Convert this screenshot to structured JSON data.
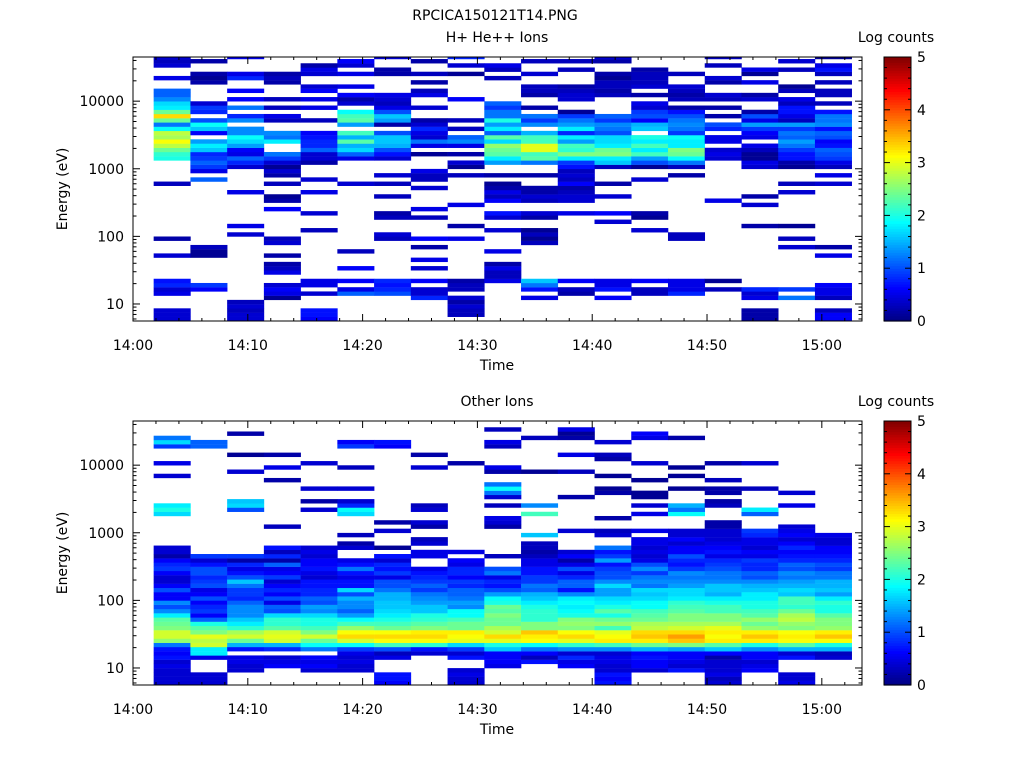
{
  "figure": {
    "title": "RPCICA150121T14.PNG"
  },
  "colors": {
    "background": "#ffffff",
    "axes": "#000000",
    "colormap": "jet"
  },
  "chart_data": [
    {
      "type": "heatmap",
      "title": "H+ He++ Ions",
      "xlabel": "Time",
      "ylabel": "Energy (eV)",
      "yscale": "log",
      "ylim": [
        5.6,
        45000
      ],
      "x_tick_labels": [
        "14:00",
        "14:10",
        "14:20",
        "14:30",
        "14:40",
        "14:50",
        "15:00"
      ],
      "x_tick_minutes": [
        0,
        10,
        20,
        30,
        40,
        50,
        60
      ],
      "xlim_minutes": [
        0,
        63.5
      ],
      "y_tick_labels": [
        "10",
        "100",
        "1000",
        "10000"
      ],
      "y_tick_values": [
        10,
        100,
        1000,
        10000
      ],
      "colorbar": {
        "label": "Log counts",
        "tick_labels": [
          "0",
          "1",
          "2",
          "3",
          "4",
          "5"
        ],
        "range": [
          0,
          5
        ]
      },
      "time_columns_start_minutes": [
        1.8,
        5.0,
        8.2,
        11.4,
        14.6,
        17.8,
        21.0,
        24.2,
        27.4,
        30.6,
        33.8,
        37.0,
        40.2,
        43.4,
        46.6,
        49.8,
        53.0,
        56.2,
        59.4
      ],
      "time_column_width_minutes": 3.2,
      "energy_rows": "log-spaced, 16 rows per decade, within ylim",
      "cells_encoding": "19 time columns separated by '|'; each is a string of space-separated log-count values (0-5), one per energy row from lowest to highest energy; '-' means empty",
      "cells": "0.4 0.4 0.4 - - - 0.5 0.4 0.8 0.7 - - - - - 0.4 - - - 0.2 - - - - - - - - - - - - 0.3 - - - - - 2.0 2.1 2.4 2.8 3.1 2.7 2.8 1.9 1.2 2.4 3.3 2.4 1.8 1.7 1.3 1.1 1.1 - - 0.5 - - 0.4 0.3 0.4 0.2 0.5 0.2 0.5 - 0.2 - 0.4 0.3 - 0.2 - - - - - - - - -|- - - - - - - 0.6 0.9 - - - - - - 0.1 0.1 0.3 - - - - - - - - - - - - - - - 1.1 - 0.5 0.9 1.1 0.9 0.8 1.6 1.8 1.4 - 0.6 1.6 1.9 1.0 - 0.8 0.9 0.4 - - - - 0.2 0.1 0.2 - - 0.2 - - - - - - - - - 0.2 0.2|0.4 0.4 0.3 0.4 0.3 - - - - - - - - - - - - - - - 0.4 - 0.5 - - - - - - - 0.5 - - - - - 0.4 0.8 1.1 0.5 0.6 1.4 1.7 1.9 1.3 1.3 - 1.3 0.8 - 1.2 - 0.6 - 0.6 - - 0.8 0.5 - - - 0.5 - - - - - - - 0.4 - 0.4 - 0.7|- - - - - 0.1 0.5 0.6 0.4 - - 0.5 0.3 0.2 - 0.2 - - 0.4 0.3 - - - - - - 0.6 - 0.2 0.1 - - 0.3 - 0.2 0.4 0.1 0.4 0.9 1.2 - - 1.8 1.2 1.3 - - 0.3 0.5 - 0.3 - 0.3 - - - 0.2 0.3 0.2 - - - - - - 0.2 - 0.3 0.5 0.4 - - 0.5|0.6 0.7 0.7 - - - 0.4 - 0.5 0.5 - - - - - - - - - - - 0.3 - - - 0.4 - - - - 0.5 - - 0.4 - - - 0.2 0.4 0.4 1.1 0.8 0.8 0.7 0.6 - - 0.3 - - 0.5 - 0.5 - 0.6 0.4 - - 0.4 0.5 0.2 - - - 0.3 - - 0.1 - 0.4 - 0.3 - - 0.3|- - - - - - 1.1 0.5 - 0.6 - - 0.6 - - - 0.3 - - - - - - - - - - - - - - - 0.4 - - - - - 0.5 1.1 1.7 1.5 2.3 1.5 2.2 - 1.4 2.3 2.2 1.9 - 0.4 0.2 0.6 - 0.5 - - 0.5 - 0.4 0.6 - 0.2 0.4 - - 0.1 0.4 0.3 0.7 - 0.8|- - - - - - 1.0 0.8 0.7 0.8 - - - - - - - - - 0.3 0.4 - - - 0.3 0.2 - - - 0.3 - - 0.3 - 0.4 - - - 0.4 0.7 1.0 1.5 1.6 1.6 1.0 - 0.2 1.4 1.6 1.0 0.5 0.3 0.4 0.5 - - - - 0.2 0.2 - - 0.4 - 0.5 0.3 - 0.5 0.2 - - - -|- - - - - 0.8 0.4 0.4 - 0.6 - - 0.4 - 0.5 - - 0.2 - 0.6 - - - - 0.3 - 0.5 - - - - 0.4 - 0.3 0.3 0.5 - - - 0.1 - 0.5 1.2 0.4 0.5 0.8 0.4 0.2 - - 0.4 - - 0.5 0.3 - 0.2 - 0.3 - - 0.2 - - - 0.1 - - 0.4 - 0.4 - - 0.3 -|- 0.3 0.3 0.4 0.2 0.4 - 0.3 0.3 0.2 - - - - - - - - - 0.5 - - 0.2 - - - - 0.5 - - - - - - 0.3 - 0.1 0.4 - 0.2 - 0.5 1.3 1.1 - 0.3 - 0.3 - - - - 0.6 - - - - - 0.1 - 0.4 - 0.8 - - - 0.3 - 0.4 - 0.3 0.3 -|- - - - - - - - - 0.5 0.3 0.3 0.5 0.2 - - 0.5 - - - - 0.4 - - 0.4 0.7 - - 0.6 0.3 0.5 0.2 0.1 - 0.2 - - 1.4 1.8 2.3 2.4 2.6 1.7 2.3 1.1 1.8 1.4 2.0 1.2 1.2 0.9 1.1 - - - - - 0.3 - 0.3 0.5 - - - - 0.4 0.5 0.2 0.7 0.6 0.5 - -|- - - - - 0.5 - 0.7 1.2 1.6 - - - - - - - - 0.3 0.1 0.3 0.1 - - 0.2 0.4 - - 0.3 0.4 0.2 0.2 - - 0.2 - - 1.2 2.3 2.2 3.0 3.0 2.2 2.2 1.5 - 1.3 0.9 1.2 - 0.2 - - 0.2 0.3 0.3 - - 0.4 - - 0.3 - - 0.4 - 0.2 0.3 0.4 0.8 0.9 0.1 0.3|- - - - - - 0.2 0.3 - 0.6 - - - - - - - - - - - - - - - 0.5 - - 0.4 0.4 0.3 0.2 0.6 0.3 0.4 0.3 0.7 0.9 1.8 2.5 2.1 2.2 1.4 1.8 0.8 1.8 1.4 1.2 0.9 0.1 - - 0.4 0.4 0.3 0.2 - - - 0.3 - 0.3 - 0.4 - 0.5 - 0.2 0.4 0.6 0.4 0.3 -|- - - - - 0.6 - 0.7 0.5 0.5 - - - - - - - - - - - - - 0.4 - 0.6 - - - 0.4 - - 0.2 - - - 0.3 1.6 1.8 2.5 2.4 1.8 1.7 1.7 1.0 1.2 1.3 0.9 1.1 - - - - 0.3 0.2 0.3 0.3 0.1 0.2 - - 0.2 0.4 0.2 - 0.3 0.4 - 0.5 - 0.1 0.6 -|- - - - - - 0.3 0.3 - 0.6 - - - - - - - - - - - 0.4 - - 0.1 0.2 - - - - - - - 0.4 - - 0.1 1.0 1.4 2.2 1.8 2.2 1.8 2.0 - 1.6 1.5 0.6 1.0 0.9 0.4 0.5 - 0.2 - 0.4 0.3 0.3 0.3 0.2 - - - - - 0.4 - - - - - - -|- - - - - - 0.8 0.5 0.5 0.5 - - - - - - - - - 0.3 0.3 - - - - - - - - - - - - - 0.2 - 0.3 1.2 1.9 2.4 2.5 1.8 1.8 1.9 0.9 1.2 1.3 1.2 1.0 0.7 0.2 - 0.3 0.2 0.3 0.4 - - 0.3 - - - - 0.4 - 0.4 0.3 0.4 0.5 - - - -|- - - - - - - 0.3 - 0.1 - - - - - - - - - - - - - - - - - - 0.5 - - - - - - - - - 0.4 0.5 0.4 - 0.5 0.5 - 0.8 1.0 - 0.2 - 0.2 - 0.3 0.4 - - 0.2 0.4 - - 0.3 - 0.3 0.5 - - - 0.4 0.3 0.4 0.6 - 0.5 0.6 -|0.2 0.2 0.2 - - 0.5 0.4 0.8 - - - - - - - - - - - - - - 0.2 - - - - 0.4 - 0.2 - - - - - - 0.4 0.5 0.1 0.1 0.3 0.5 - 0.5 0.6 0.9 1.4 0.5 1.0 0.2 - - 0.4 0.2 - - 0.5 - 0.1 0.5 - - - - 0.4 - - 0.5 - 0.2 0.7 0.2 0.5|- - - - - 1.2 - 0.9 - - - - - - - - - 0.4 - 0.3 - - 0.1 - - - - - - - 0.4 - 0.3 - - - 0.1 0.2 0.7 0.7 0.9 1.2 1.4 1.1 1.2 0.9 1.4 0.3 0.5 0.7 0.7 0.3 0.5 - 0.3 0.1 - - - 0.3 - 0.4 - 0.6 - 0.1 0.2 - 0.3 - 0.2 - 0.3|0.6 0.6 0.3 - - 0.3 0.5 0.5 0.6 - - - - - - 0.5 - 0.2 - - - - - - - - - - - - - - 0.4 - 0.5 - 0.3 0.5 0.9 1.0 1.1 0.7 0.6 1.0 1.1 0.7 1.3 1.2 1.2 0.7 - 0.3 - 0.3 0.3 - 0.3 - 0.3 0.7 0.5 - 0.1 - 0.3 - 0.4 0.3 - 0.4 - - 0.5"
    },
    {
      "type": "heatmap",
      "title": "Other Ions",
      "xlabel": "Time",
      "ylabel": "Energy (eV)",
      "yscale": "log",
      "ylim": [
        5.6,
        45000
      ],
      "x_tick_labels": [
        "14:00",
        "14:10",
        "14:20",
        "14:30",
        "14:40",
        "14:50",
        "15:00"
      ],
      "x_tick_minutes": [
        0,
        10,
        20,
        30,
        40,
        50,
        60
      ],
      "xlim_minutes": [
        0,
        63.5
      ],
      "y_tick_labels": [
        "10",
        "100",
        "1000",
        "10000"
      ],
      "y_tick_values": [
        10,
        100,
        1000,
        10000
      ],
      "colorbar": {
        "label": "Log counts",
        "tick_labels": [
          "0",
          "1",
          "2",
          "3",
          "4",
          "5"
        ],
        "range": [
          0,
          5
        ]
      },
      "time_columns_start_minutes": [
        1.8,
        5.0,
        8.2,
        11.4,
        14.6,
        17.8,
        21.0,
        24.2,
        27.4,
        30.6,
        33.8,
        37.0,
        40.2,
        43.4,
        46.6,
        49.8,
        53.0,
        56.2,
        59.4
      ],
      "time_column_width_minutes": 3.2,
      "energy_rows": "log-spaced, 16 rows per decade, within ylim",
      "cells_encoding": "19 time columns separated by '|'; each is a string of space-separated log-count values (0-5), one per energy row from lowest to highest energy; '-' means empty",
      "cells": "0.4 0.4 0.4 0.4 0.5 0.4 0.7 0.6 0.7 1.2 2.6 2.9 2.9 2.5 2.4 2.3 1.8 1.3 1.0 1.3 0.6 0.6 1.0 0.6 0.4 0.4 0.6 0.9 0.8 0.6 0.2 0.4 0.4 - - - - - - - 1.7 2.0 1.8 - - - - - - 0.4 - - 0.5 - - - 0.9 1.7 1.2 - - -|0.4 0.4 0.4 - - - 0.5 1.8 1.8 2.9 2.8 3.0 2.5 2.3 2.0 1.1 0.6 0.9 0.8 0.6 1.0 0.6 0.5 1.0 0.9 0.8 1.0 1.0 0.7 0.4 0.9 - - - - - - - - - - - - - - - - - - - - - - - - - 1.1 1.1 - - -|- - - 0.4 0.4 0.5 0.5 - 0.7 1.5 2.4 2.9 2.7 2.1 1.8 1.6 1.3 1.3 1.3 1.1 0.8 0.9 0.9 1.2 1.6 1.0 0.7 0.5 0.8 0.2 0.9 - - - - - - - - - - 1.0 1.7 1.6 - - - - - - 0.4 - - - 0.1 - - - - 0.2 - - -|- - - - 0.6 0.5 0.4 - 0.8 1.5 2.9 3.0 2.9 2.3 2.1 2.1 1.7 1.0 1.1 0.5 1.0 0.6 0.8 0.6 0.4 0.9 0.6 0.5 1.1 0.2 0.8 0.3 0.7 - - - - 0.3 - - - - - - - - - - 0.2 - - 0.5 - - 0.2 - - - - - -|- - - 0.4 0.6 0.5 0.6 - 1.2 1.9 2.4 2.9 2.5 2.2 2.0 2.0 1.7 1.3 1.4 1.0 1.1 0.8 0.8 0.7 0.7 0.4 0.5 0.7 0.6 0.6 0.4 0.5 0.4 - - - - - - - - 0.4 - 0.2 - - 0.4 - - - - - 0.4 - - - - - - - - -|- - - 0.4 0.4 0.5 0.4 0.5 0.9 1.9 2.9 3.3 3.1 2.6 2.2 1.9 1.4 1.1 1.3 1.3 1.5 1.0 1.7 0.7 0.7 0.5 0.7 1.2 0.7 0.5 - - 0.4 0.2 - 0.3 - - - - 1.7 1.9 0.8 0.4 - - 0.4 - - - - 0.3 - - - - 0.9 0.6 - - - -|0.6 0.7 0.7 - - - 0.5 0.3 1.0 2.2 3.1 3.3 3.1 2.4 2.2 2.0 1.8 1.7 1.6 1.6 1.5 1.5 1.2 1.0 1.0 0.5 0.9 0.7 0.8 0.4 0.7 - 0.1 - - - 0.4 - 0.2 - - - - - - - - - - - - - - - - - 0.6 0.7 - - - -|- - - - - - - 0.4 0.7 2.1 3.1 3.3 3.2 2.5 2.3 2.1 2.0 1.6 1.6 1.4 1.3 1.2 0.9 1.1 0.9 0.8 0.7 0.5 - - 0.5 0.5 - 0.4 0.3 - - 0.2 0.4 - - 0.4 0.3 - - - - - - - - 0.4 - - 0.2 - - - - - - -|0.4 0.4 0.5 0.4 - - 0.7 0.4 0.9 1.7 3.0 3.1 3.2 2.4 2.4 2.2 1.9 1.9 1.3 1.4 1.2 1.1 1.1 0.8 0.9 0.6 0.8 0.8 0.5 0.6 - 0.5 - - - - - - - - - - - - - - - - - - - - 0.2 - - - - - - - - -|- - - - 0.5 0.6 0.6 0.6 1.6 2.0 3.0 3.3 2.9 2.7 2.4 2.4 2.5 2.3 2.4 2.0 1.9 1.4 1.0 0.7 0.8 0.5 1.2 1.0 - - 0.3 - - - - - - 0.2 0.4 0.5 - - 0.3 - 0.4 1.2 1.9 1.2 - - 0.2 0.5 - - - - 0.3 0.5 - - 0.3 - -|- - - - - 0.7 0.3 0.6 1.2 1.9 3.1 3.2 3.4 2.5 2.5 2.1 2.1 2.1 2.0 1.8 1.6 1.5 1.1 1.2 0.9 0.9 0.7 0.7 0.5 0.5 0.3 0.2 0.3 0.3 - 1.6 - - - - 2.2 - 1.3 - - - - - - - 0.1 - - - - - - - 0.3 - - -|- - - - 0.6 0.5 0.8 0.4 1.3 2.1 3.0 3.3 3.1 2.5 2.6 2.5 2.0 1.9 1.8 1.9 1.8 1.3 0.7 1.1 1.1 0.8 0.5 1.0 0.5 0.2 0.6 0.4 - - - - 0.4 - - - - - - - 0.2 - - - - - 0.3 - - - 0.5 - - - 0.2 0.1 0.5 - -|0.7 0.6 0.7 0.4 0.4 0.5 0.5 0.4 1.3 2.2 3.2 3.1 3.0 2.2 2.6 2.4 2.0 2.3 2.0 1.8 1.7 1.4 1.4 1.7 1.3 1.0 1.0 0.9 0.7 1.4 0.9 0.7 1.2 - - 0.4 0.3 - - 0.2 - - - - - 0.2 0.1 - - 0.1 - - - 0.2 0.3 - - 0.4 - - - -|- - - 0.4 0.6 0.6 0.7 0.6 1.5 2.4 3.2 3.4 3.3 2.8 2.7 2.4 2.3 2.2 1.9 1.9 1.7 1.6 1.7 1.2 1.3 1.2 0.9 1.3 1.0 0.5 0.4 0.5 0.4 0.5 0.5 - 0.5 - - - 0.5 - 0.4 - 0.1 0.1 - - 0.1 - - - 0.4 - - - - - 0.5 0.6 - -|- - - 0.7 0.4 0.5 0.6 0.6 1.4 2.5 3.4 3.6 3.3 2.9 2.7 2.5 2.5 2.3 2.2 2.1 1.8 1.7 1.7 1.4 1.3 1.2 1.3 0.9 0.7 0.8 1.0 0.6 0.6 0.4 0.6 0.4 0.4 - - - 1.9 1.2 1.5 - - - 0.1 - - 0.1 - 0.1 - - - - - - 0.2 - - -|0.4 0.3 0.5 0.4 0.4 0.4 0.2 0.6 1.6 2.3 3.2 3.1 3.2 3.0 2.7 2.5 2.5 2.2 2.2 2.0 1.8 1.5 1.6 1.6 1.3 1.2 1.2 1.0 0.9 0.8 0.5 0.7 0.6 0.5 0.4 0.4 0.4 0.2 0.2 - - - 0.3 0.2 - 0.2 0.2 - 0.3 - - - 0.2 - - - - - - - - -|- - - 0.6 0.5 0.4 0.6 0.6 1.3 2.0 3.2 3.4 3.2 2.6 2.4 2.6 2.3 2.2 2.0 2.0 1.8 1.8 1.6 1.5 1.3 1.0 1.1 0.8 0.8 0.9 0.5 0.6 0.4 0.5 0.5 0.8 0.9 - - - 1.1 1.8 - - - - 0.3 - - - - - 0.4 - - - - - - - - -|0.5 0.4 0.4 - - - 0.7 0.4 1.5 2.3 3.1 3.2 3.1 2.5 2.6 2.8 2.7 2.4 2.1 2.2 2.2 1.6 1.7 1.5 1.4 1.2 1.3 1.0 1.1 0.8 0.7 0.6 0.8 0.6 0.4 0.6 0.5 0.4 - - - - 0.5 - - 0.4 - - - - - - - - - - - - - - - -|- - - - - - 0.4 0.3 1.5 2.0 3.1 3.4 3.2 2.6 2.5 2.5 2.3 2.0 2.0 2.1 1.8 1.4 1.6 1.5 1.5 1.2 1.2 0.9 1.0 0.8 0.7 0.6 0.6 0.4 0.4 0.5 - - - - - - - - - - - - - - - - - - - - - - - - - -"
    }
  ]
}
